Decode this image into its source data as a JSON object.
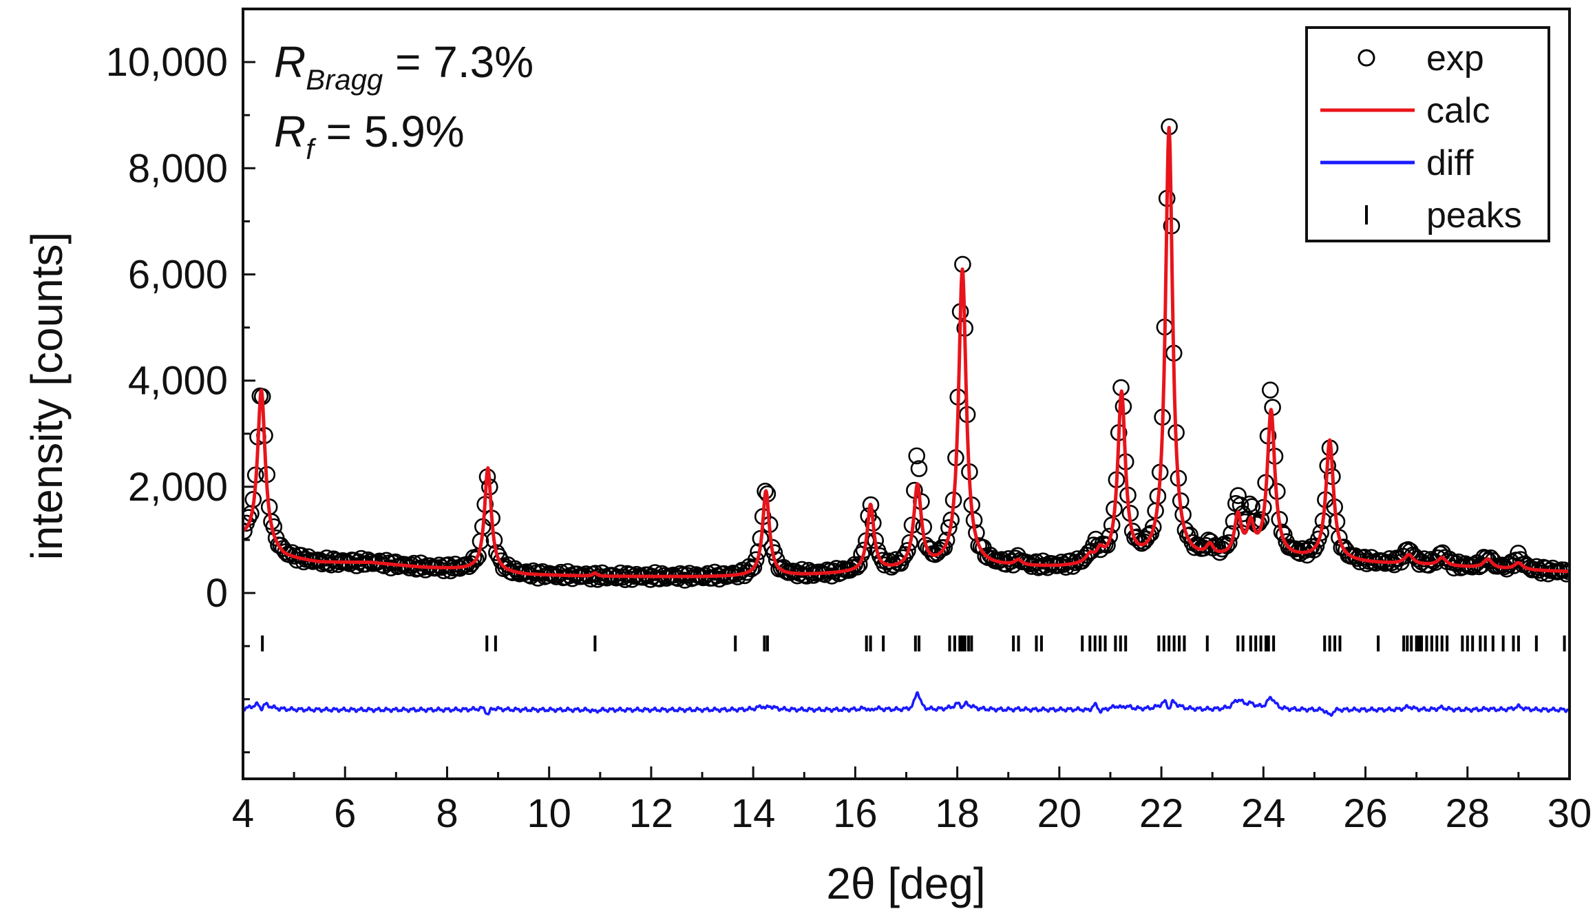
{
  "chart_data": {
    "type": "line",
    "xlabel": "2θ [deg]",
    "ylabel": "intensity [counts]",
    "xlim": [
      4,
      30
    ],
    "ylim": [
      -3500,
      11000
    ],
    "x_ticks": [
      4,
      6,
      8,
      10,
      12,
      14,
      16,
      18,
      20,
      22,
      24,
      26,
      28,
      30
    ],
    "x_tick_labels": [
      "4",
      "6",
      "8",
      "10",
      "12",
      "14",
      "16",
      "18",
      "20",
      "22",
      "24",
      "26",
      "28",
      "30"
    ],
    "y_ticks": [
      0,
      2000,
      4000,
      6000,
      8000,
      10000
    ],
    "y_tick_labels": [
      "0",
      "2,000",
      "4,000",
      "6,000",
      "8,000",
      "10,000"
    ],
    "annotations": [
      {
        "symbol": "R",
        "subscript": "Bragg",
        "text": " = 7.3%"
      },
      {
        "symbol": "R",
        "subscript": "f",
        "text": " = 5.9%"
      }
    ],
    "legend": {
      "position": "top-right",
      "entries": [
        {
          "label": "exp",
          "marker": "open-circle",
          "color": "#000000"
        },
        {
          "label": "calc",
          "marker": "line",
          "color": "#e8141b"
        },
        {
          "label": "diff",
          "marker": "line",
          "color": "#1a1aff"
        },
        {
          "label": "peaks",
          "marker": "vbar",
          "color": "#000000"
        }
      ]
    },
    "baseline": [
      [
        4.0,
        1000
      ],
      [
        4.3,
        900
      ],
      [
        4.8,
        650
      ],
      [
        5.5,
        570
      ],
      [
        6.5,
        570
      ],
      [
        7.5,
        480
      ],
      [
        8.5,
        430
      ],
      [
        9.5,
        340
      ],
      [
        11,
        310
      ],
      [
        13,
        300
      ],
      [
        14,
        310
      ],
      [
        15,
        330
      ],
      [
        16,
        370
      ],
      [
        17,
        420
      ],
      [
        18,
        470
      ],
      [
        19,
        480
      ],
      [
        20,
        470
      ],
      [
        21,
        500
      ],
      [
        22,
        560
      ],
      [
        23,
        610
      ],
      [
        24,
        640
      ],
      [
        25,
        620
      ],
      [
        26,
        560
      ],
      [
        27,
        520
      ],
      [
        28,
        480
      ],
      [
        29,
        430
      ],
      [
        30,
        400
      ]
    ],
    "calc_peaks": [
      {
        "x": 4.36,
        "height": 2950,
        "width": 0.09
      },
      {
        "x": 8.8,
        "height": 1950,
        "width": 0.08
      },
      {
        "x": 10.9,
        "height": 60,
        "width": 0.05
      },
      {
        "x": 14.25,
        "height": 1600,
        "width": 0.08
      },
      {
        "x": 16.3,
        "height": 1250,
        "width": 0.08
      },
      {
        "x": 17.22,
        "height": 1550,
        "width": 0.09
      },
      {
        "x": 18.1,
        "height": 5600,
        "width": 0.09
      },
      {
        "x": 19.2,
        "height": 100,
        "width": 0.08
      },
      {
        "x": 20.6,
        "height": 150,
        "width": 0.1
      },
      {
        "x": 20.8,
        "height": 200,
        "width": 0.08
      },
      {
        "x": 21.22,
        "height": 3200,
        "width": 0.09
      },
      {
        "x": 22.15,
        "height": 8150,
        "width": 0.085
      },
      {
        "x": 22.95,
        "height": 200,
        "width": 0.08
      },
      {
        "x": 23.5,
        "height": 750,
        "width": 0.08
      },
      {
        "x": 23.75,
        "height": 550,
        "width": 0.08
      },
      {
        "x": 24.15,
        "height": 2750,
        "width": 0.09
      },
      {
        "x": 25.3,
        "height": 2250,
        "width": 0.09
      },
      {
        "x": 26.85,
        "height": 180,
        "width": 0.1
      },
      {
        "x": 27.5,
        "height": 150,
        "width": 0.1
      },
      {
        "x": 28.4,
        "height": 170,
        "width": 0.1
      },
      {
        "x": 29.0,
        "height": 130,
        "width": 0.1
      }
    ],
    "exp_peaks": [
      {
        "x": 4.36,
        "height": 3000,
        "width": 0.1
      },
      {
        "x": 8.8,
        "height": 1800,
        "width": 0.09
      },
      {
        "x": 14.25,
        "height": 1650,
        "width": 0.09
      },
      {
        "x": 16.3,
        "height": 1200,
        "width": 0.09
      },
      {
        "x": 17.22,
        "height": 2150,
        "width": 0.08
      },
      {
        "x": 18.1,
        "height": 5700,
        "width": 0.095
      },
      {
        "x": 19.2,
        "height": 120,
        "width": 0.08
      },
      {
        "x": 20.7,
        "height": 300,
        "width": 0.12
      },
      {
        "x": 21.22,
        "height": 3250,
        "width": 0.095
      },
      {
        "x": 22.15,
        "height": 8200,
        "width": 0.09
      },
      {
        "x": 22.95,
        "height": 200,
        "width": 0.08
      },
      {
        "x": 23.5,
        "height": 1050,
        "width": 0.09
      },
      {
        "x": 23.75,
        "height": 700,
        "width": 0.09
      },
      {
        "x": 24.15,
        "height": 3150,
        "width": 0.09
      },
      {
        "x": 25.3,
        "height": 2050,
        "width": 0.095
      },
      {
        "x": 26.85,
        "height": 280,
        "width": 0.1
      },
      {
        "x": 27.5,
        "height": 220,
        "width": 0.1
      },
      {
        "x": 28.4,
        "height": 200,
        "width": 0.1
      },
      {
        "x": 29.0,
        "height": 240,
        "width": 0.1
      }
    ],
    "exp_step": 0.045,
    "diff_offset": -2200,
    "diff_scale": 0.55,
    "peak_tick_level": -950,
    "peak_tick_height": 300,
    "peak_positions": [
      4.38,
      8.78,
      8.95,
      10.9,
      13.65,
      14.22,
      14.28,
      16.22,
      16.3,
      16.55,
      17.18,
      17.25,
      17.85,
      17.95,
      18.05,
      18.1,
      18.15,
      18.22,
      18.28,
      19.1,
      19.2,
      19.55,
      19.65,
      20.45,
      20.6,
      20.7,
      20.8,
      20.9,
      21.1,
      21.2,
      21.3,
      21.95,
      22.05,
      22.15,
      22.25,
      22.35,
      22.45,
      22.9,
      23.5,
      23.6,
      23.75,
      23.85,
      23.95,
      24.05,
      24.1,
      24.2,
      25.2,
      25.3,
      25.4,
      25.5,
      26.25,
      26.75,
      26.82,
      26.9,
      27.0,
      27.05,
      27.1,
      27.2,
      27.3,
      27.4,
      27.5,
      27.6,
      27.9,
      28.0,
      28.1,
      28.25,
      28.35,
      28.5,
      28.7,
      28.9,
      29.0,
      29.35,
      29.9
    ]
  }
}
